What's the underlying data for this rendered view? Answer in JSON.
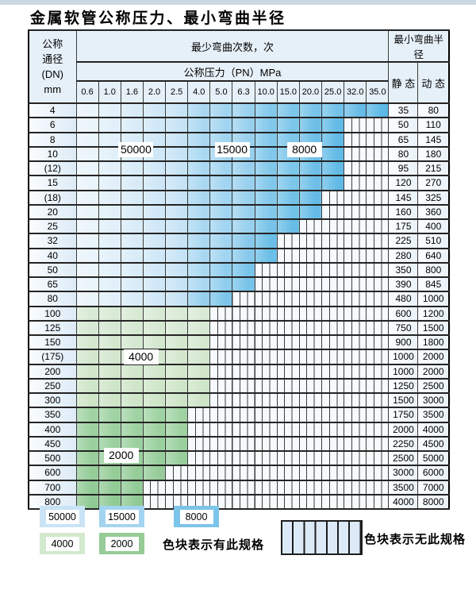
{
  "title": "金属软管公称压力、最小弯曲半径",
  "table": {
    "header": {
      "dn_lines": [
        "公称",
        "通径",
        "(DN)",
        "mm"
      ],
      "cycles_title": "最少弯曲次数，次",
      "pressure_title": "公称压力（PN）MPa",
      "radius_title": "最小弯曲半径",
      "static_label": "静 态",
      "dynamic_label": "动 态"
    },
    "pressure_columns": [
      "0.6",
      "1.0",
      "1.6",
      "2.0",
      "2.5",
      "4.0",
      "5.0",
      "6.3",
      "10.0",
      "15.0",
      "20.0",
      "25.0",
      "32.0",
      "35.0"
    ]
  },
  "chart_data": {
    "type": "table",
    "title": "金属软管公称压力、最小弯曲半径",
    "pn_mpa_columns": [
      0.6,
      1.0,
      1.6,
      2.0,
      2.5,
      4.0,
      5.0,
      6.3,
      10.0,
      15.0,
      20.0,
      25.0,
      32.0,
      35.0
    ],
    "cycle_column_zones_blue": {
      "50000": [
        0.6,
        2.5
      ],
      "15000": [
        4.0,
        6.3
      ],
      "8000": [
        10.0,
        35.0
      ]
    },
    "cycle_row_zones_green": {
      "4000": [
        "100",
        "300"
      ],
      "2000": [
        "350",
        "800"
      ]
    },
    "rows": [
      {
        "dn": "4",
        "cols": 14,
        "pn_max": 35.0,
        "zone": "blue",
        "static": 35,
        "dynamic": 80
      },
      {
        "dn": "6",
        "cols": 12,
        "pn_max": 25.0,
        "zone": "blue",
        "static": 50,
        "dynamic": 110
      },
      {
        "dn": "8",
        "cols": 12,
        "pn_max": 25.0,
        "zone": "blue",
        "static": 65,
        "dynamic": 145
      },
      {
        "dn": "10",
        "cols": 12,
        "pn_max": 25.0,
        "zone": "blue",
        "static": 80,
        "dynamic": 180
      },
      {
        "dn": "(12)",
        "cols": 12,
        "pn_max": 25.0,
        "zone": "blue",
        "static": 95,
        "dynamic": 215
      },
      {
        "dn": "15",
        "cols": 12,
        "pn_max": 25.0,
        "zone": "blue",
        "static": 120,
        "dynamic": 270
      },
      {
        "dn": "(18)",
        "cols": 11,
        "pn_max": 20.0,
        "zone": "blue",
        "static": 145,
        "dynamic": 325
      },
      {
        "dn": "20",
        "cols": 11,
        "pn_max": 20.0,
        "zone": "blue",
        "static": 160,
        "dynamic": 360
      },
      {
        "dn": "25",
        "cols": 10,
        "pn_max": 15.0,
        "zone": "blue",
        "static": 175,
        "dynamic": 400
      },
      {
        "dn": "32",
        "cols": 9,
        "pn_max": 10.0,
        "zone": "blue",
        "static": 225,
        "dynamic": 510
      },
      {
        "dn": "40",
        "cols": 9,
        "pn_max": 10.0,
        "zone": "blue",
        "static": 280,
        "dynamic": 640
      },
      {
        "dn": "50",
        "cols": 8,
        "pn_max": 6.3,
        "zone": "blue",
        "static": 350,
        "dynamic": 800
      },
      {
        "dn": "65",
        "cols": 8,
        "pn_max": 6.3,
        "zone": "blue",
        "static": 390,
        "dynamic": 845
      },
      {
        "dn": "80",
        "cols": 7,
        "pn_max": 5.0,
        "zone": "blue",
        "static": 480,
        "dynamic": 1000
      },
      {
        "dn": "100",
        "cols": 6,
        "pn_max": 4.0,
        "zone": "green4000",
        "static": 600,
        "dynamic": 1200
      },
      {
        "dn": "125",
        "cols": 6,
        "pn_max": 4.0,
        "zone": "green4000",
        "static": 750,
        "dynamic": 1500
      },
      {
        "dn": "150",
        "cols": 6,
        "pn_max": 4.0,
        "zone": "green4000",
        "static": 900,
        "dynamic": 1800
      },
      {
        "dn": "(175)",
        "cols": 6,
        "pn_max": 4.0,
        "zone": "green4000",
        "static": 1000,
        "dynamic": 2000
      },
      {
        "dn": "200",
        "cols": 6,
        "pn_max": 4.0,
        "zone": "green4000",
        "static": 1000,
        "dynamic": 2000
      },
      {
        "dn": "250",
        "cols": 6,
        "pn_max": 4.0,
        "zone": "green4000",
        "static": 1250,
        "dynamic": 2500
      },
      {
        "dn": "300",
        "cols": 6,
        "pn_max": 4.0,
        "zone": "green4000",
        "static": 1500,
        "dynamic": 3000
      },
      {
        "dn": "350",
        "cols": 5,
        "pn_max": 2.5,
        "zone": "green2000",
        "static": 1750,
        "dynamic": 3500
      },
      {
        "dn": "400",
        "cols": 5,
        "pn_max": 2.5,
        "zone": "green2000",
        "static": 2000,
        "dynamic": 4000
      },
      {
        "dn": "450",
        "cols": 5,
        "pn_max": 2.5,
        "zone": "green2000",
        "static": 2250,
        "dynamic": 4500
      },
      {
        "dn": "500",
        "cols": 5,
        "pn_max": 2.5,
        "zone": "green2000",
        "static": 2500,
        "dynamic": 5000
      },
      {
        "dn": "600",
        "cols": 4,
        "pn_max": 2.0,
        "zone": "green2000",
        "static": 3000,
        "dynamic": 6000
      },
      {
        "dn": "700",
        "cols": 3,
        "pn_max": 1.6,
        "zone": "green2000",
        "static": 3500,
        "dynamic": 7000
      },
      {
        "dn": "800",
        "cols": 3,
        "pn_max": 1.6,
        "zone": "green2000",
        "static": 4000,
        "dynamic": 8000
      }
    ],
    "overlay_labels": [
      {
        "text": "50000",
        "col_center": 2.7,
        "row_center": 3.85
      },
      {
        "text": "15000",
        "col_center": 6.98,
        "row_center": 3.85
      },
      {
        "text": "8000",
        "col_center": 10.2,
        "row_center": 3.85
      },
      {
        "text": "4000",
        "col_center": 2.92,
        "row_center": 18.18
      },
      {
        "text": "2000",
        "col_center": 2.04,
        "row_center": 24.96
      }
    ]
  },
  "legend": {
    "swatches": [
      {
        "label": "50000",
        "color": "#c9e3f5"
      },
      {
        "label": "15000",
        "color": "#a3d4ef"
      },
      {
        "label": "8000",
        "color": "#7cc4e9"
      },
      {
        "label": "4000",
        "color": "#d3e9ce"
      },
      {
        "label": "2000",
        "color": "#96cb97"
      }
    ],
    "present_text": "色块表示有此规格",
    "absent_text": "色块表示无此规格"
  },
  "colors": {
    "blue_light_start": "#eaf4fb",
    "blue_light_end": "#c6e3f5",
    "blue_mid_start": "#aad8f1",
    "blue_mid_end": "#98d0ee",
    "blue_dark_start": "#82c8eb",
    "blue_dark_end": "#66bce7",
    "blue_edge": "#4fb2e2",
    "green4000_start": "#d8ead4",
    "green4000_end": "#cde4c7",
    "green2000_start": "#a0d3a3",
    "green2000_end": "#8fc993",
    "stripe_bg": "#f6fafd",
    "stripe_line": "#3f3f3f",
    "top_strip": "#ccd8e2"
  }
}
